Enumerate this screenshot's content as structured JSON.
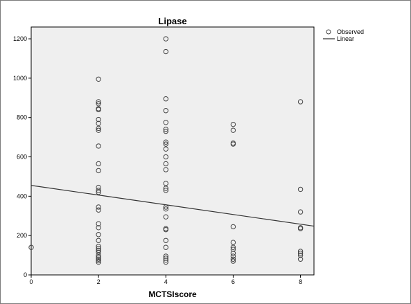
{
  "chart_data": {
    "type": "scatter",
    "title": "Lipase",
    "xlabel": "MCTSIscore",
    "ylabel": "",
    "xlim": [
      0,
      8.4
    ],
    "ylim": [
      0,
      1260
    ],
    "x_ticks": [
      "0",
      "2",
      "4",
      "6",
      "8"
    ],
    "y_ticks": [
      "0",
      "200",
      "400",
      "600",
      "800",
      "1000",
      "1200"
    ],
    "grid": false,
    "legend_placement": "right",
    "legend": [
      {
        "name": "Observed",
        "marker": "circle"
      },
      {
        "name": "Linear",
        "marker": "line"
      }
    ],
    "plot_background": "#efefef",
    "marker_color": "#444444",
    "line_color": "#333333",
    "series": [
      {
        "name": "Observed",
        "points": [
          {
            "x": 0,
            "y": 140
          },
          {
            "x": 2,
            "y": 995
          },
          {
            "x": 2,
            "y": 880
          },
          {
            "x": 2,
            "y": 870
          },
          {
            "x": 2,
            "y": 845
          },
          {
            "x": 2,
            "y": 840
          },
          {
            "x": 2,
            "y": 790
          },
          {
            "x": 2,
            "y": 770
          },
          {
            "x": 2,
            "y": 745
          },
          {
            "x": 2,
            "y": 735
          },
          {
            "x": 2,
            "y": 655
          },
          {
            "x": 2,
            "y": 565
          },
          {
            "x": 2,
            "y": 530
          },
          {
            "x": 2,
            "y": 445
          },
          {
            "x": 2,
            "y": 430
          },
          {
            "x": 2,
            "y": 420
          },
          {
            "x": 2,
            "y": 345
          },
          {
            "x": 2,
            "y": 330
          },
          {
            "x": 2,
            "y": 260
          },
          {
            "x": 2,
            "y": 240
          },
          {
            "x": 2,
            "y": 205
          },
          {
            "x": 2,
            "y": 175
          },
          {
            "x": 2,
            "y": 145
          },
          {
            "x": 2,
            "y": 135
          },
          {
            "x": 2,
            "y": 125
          },
          {
            "x": 2,
            "y": 115
          },
          {
            "x": 2,
            "y": 100
          },
          {
            "x": 2,
            "y": 90
          },
          {
            "x": 2,
            "y": 80
          },
          {
            "x": 2,
            "y": 72
          },
          {
            "x": 2,
            "y": 65
          },
          {
            "x": 4,
            "y": 1200
          },
          {
            "x": 4,
            "y": 1135
          },
          {
            "x": 4,
            "y": 895
          },
          {
            "x": 4,
            "y": 835
          },
          {
            "x": 4,
            "y": 775
          },
          {
            "x": 4,
            "y": 740
          },
          {
            "x": 4,
            "y": 730
          },
          {
            "x": 4,
            "y": 675
          },
          {
            "x": 4,
            "y": 665
          },
          {
            "x": 4,
            "y": 640
          },
          {
            "x": 4,
            "y": 600
          },
          {
            "x": 4,
            "y": 565
          },
          {
            "x": 4,
            "y": 535
          },
          {
            "x": 4,
            "y": 465
          },
          {
            "x": 4,
            "y": 440
          },
          {
            "x": 4,
            "y": 430
          },
          {
            "x": 4,
            "y": 345
          },
          {
            "x": 4,
            "y": 335
          },
          {
            "x": 4,
            "y": 295
          },
          {
            "x": 4,
            "y": 235
          },
          {
            "x": 4,
            "y": 230
          },
          {
            "x": 4,
            "y": 175
          },
          {
            "x": 4,
            "y": 140
          },
          {
            "x": 4,
            "y": 95
          },
          {
            "x": 4,
            "y": 85
          },
          {
            "x": 4,
            "y": 75
          },
          {
            "x": 4,
            "y": 65
          },
          {
            "x": 6,
            "y": 765
          },
          {
            "x": 6,
            "y": 735
          },
          {
            "x": 6,
            "y": 670
          },
          {
            "x": 6,
            "y": 665
          },
          {
            "x": 6,
            "y": 245
          },
          {
            "x": 6,
            "y": 165
          },
          {
            "x": 6,
            "y": 140
          },
          {
            "x": 6,
            "y": 130
          },
          {
            "x": 6,
            "y": 110
          },
          {
            "x": 6,
            "y": 95
          },
          {
            "x": 6,
            "y": 80
          },
          {
            "x": 6,
            "y": 70
          },
          {
            "x": 8,
            "y": 880
          },
          {
            "x": 8,
            "y": 435
          },
          {
            "x": 8,
            "y": 320
          },
          {
            "x": 8,
            "y": 240
          },
          {
            "x": 8,
            "y": 235
          },
          {
            "x": 8,
            "y": 120
          },
          {
            "x": 8,
            "y": 110
          },
          {
            "x": 8,
            "y": 100
          },
          {
            "x": 8,
            "y": 80
          }
        ]
      },
      {
        "name": "Linear",
        "line": [
          {
            "x": 0,
            "y": 455
          },
          {
            "x": 8.4,
            "y": 248
          }
        ]
      }
    ]
  }
}
